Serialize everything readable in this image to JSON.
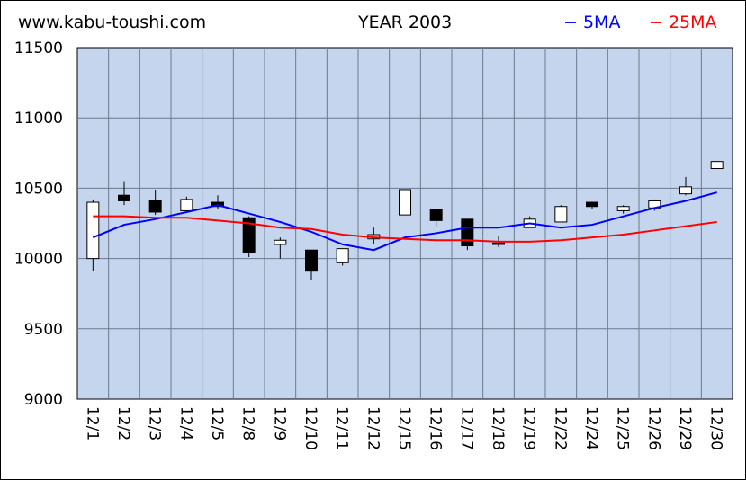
{
  "header": {
    "site": "www.kabu-toushi.com",
    "title": "YEAR 2003",
    "legend_5ma": "− 5MA",
    "legend_25ma": "− 25MA"
  },
  "colors": {
    "plot_bg": "#c5d5ee",
    "grid": "#6b7a8c",
    "ma5": "#0000ff",
    "ma25": "#ff0000",
    "up_candle": "#ffffff",
    "down_candle": "#000000"
  },
  "chart_data": {
    "type": "candlestick",
    "title": "YEAR 2003",
    "ylim": [
      9000,
      11500
    ],
    "yticks": [
      9000,
      9500,
      10000,
      10500,
      11000,
      11500
    ],
    "grid": true,
    "legend": "top-right",
    "categories": [
      "12/1",
      "12/2",
      "12/3",
      "12/4",
      "12/5",
      "12/8",
      "12/9",
      "12/10",
      "12/11",
      "12/12",
      "12/15",
      "12/16",
      "12/17",
      "12/18",
      "12/19",
      "12/22",
      "12/24",
      "12/25",
      "12/26",
      "12/29",
      "12/30"
    ],
    "ohlc": [
      {
        "o": 10000,
        "h": 10420,
        "l": 9910,
        "c": 10400
      },
      {
        "o": 10450,
        "h": 10550,
        "l": 10380,
        "c": 10410
      },
      {
        "o": 10410,
        "h": 10490,
        "l": 10310,
        "c": 10330
      },
      {
        "o": 10340,
        "h": 10440,
        "l": 10330,
        "c": 10420
      },
      {
        "o": 10400,
        "h": 10450,
        "l": 10350,
        "c": 10370
      },
      {
        "o": 10290,
        "h": 10300,
        "l": 10010,
        "c": 10040
      },
      {
        "o": 10100,
        "h": 10150,
        "l": 10000,
        "c": 10130
      },
      {
        "o": 10060,
        "h": 10060,
        "l": 9850,
        "c": 9910
      },
      {
        "o": 9970,
        "h": 10070,
        "l": 9950,
        "c": 10070
      },
      {
        "o": 10140,
        "h": 10220,
        "l": 10100,
        "c": 10170
      },
      {
        "o": 10310,
        "h": 10490,
        "l": 10310,
        "c": 10490
      },
      {
        "o": 10350,
        "h": 10350,
        "l": 10230,
        "c": 10270
      },
      {
        "o": 10280,
        "h": 10280,
        "l": 10060,
        "c": 10090
      },
      {
        "o": 10110,
        "h": 10160,
        "l": 10080,
        "c": 10100
      },
      {
        "o": 10220,
        "h": 10300,
        "l": 10220,
        "c": 10280
      },
      {
        "o": 10260,
        "h": 10380,
        "l": 10260,
        "c": 10370
      },
      {
        "o": 10400,
        "h": 10400,
        "l": 10350,
        "c": 10370
      },
      {
        "o": 10340,
        "h": 10380,
        "l": 10320,
        "c": 10370
      },
      {
        "o": 10360,
        "h": 10420,
        "l": 10340,
        "c": 10410
      },
      {
        "o": 10460,
        "h": 10580,
        "l": 10450,
        "c": 10510
      },
      {
        "o": 10640,
        "h": 10690,
        "l": 10640,
        "c": 10690
      }
    ],
    "series": [
      {
        "name": "5MA",
        "values": [
          10150,
          10240,
          10280,
          10330,
          10380,
          10320,
          10260,
          10190,
          10100,
          10060,
          10150,
          10180,
          10220,
          10220,
          10250,
          10220,
          10240,
          10300,
          10360,
          10410,
          10470
        ]
      },
      {
        "name": "25MA",
        "values": [
          10300,
          10300,
          10290,
          10290,
          10270,
          10250,
          10220,
          10210,
          10170,
          10150,
          10140,
          10130,
          10130,
          10120,
          10120,
          10130,
          10150,
          10170,
          10200,
          10230,
          10260
        ]
      }
    ]
  }
}
